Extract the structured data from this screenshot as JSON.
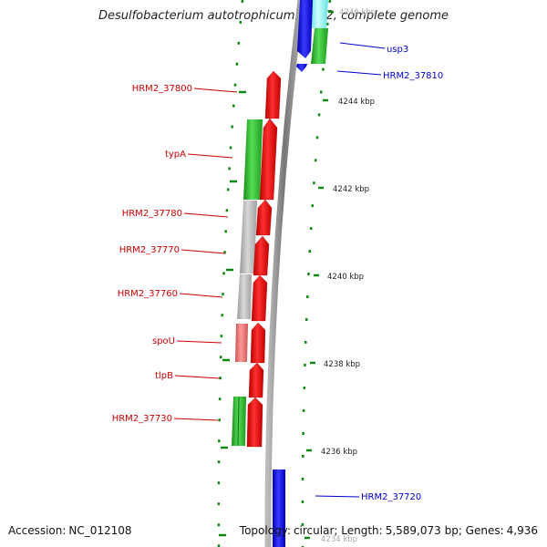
{
  "title": "Desulfobacterium autotrophicum HRM2, complete genome",
  "footer": {
    "accession_label": "Accession:",
    "accession": "NC_012108",
    "topology_label": "Topology:",
    "topology": "circular",
    "length_label": "Length:",
    "length": "5,589,073 bp",
    "genes_label": "Genes:",
    "genes": "4,936"
  },
  "colors": {
    "red": "#ff0000",
    "green": "#33cc33",
    "blue": "#0000ff",
    "gray": "#c0c0c0",
    "salmon": "#ee7777",
    "cyan": "#00ffff",
    "label_red": "#cc0000",
    "label_blue": "#0000cc",
    "tick_green": "#118811"
  },
  "scale_labels": [
    "4246 kbp",
    "4244 kbp",
    "4242 kbp",
    "4240 kbp",
    "4238 kbp",
    "4236 kbp",
    "4234 kbp"
  ],
  "gene_labels_right": [
    "usp3",
    "HRM2_37810",
    "HRM2_37720"
  ],
  "gene_labels_left": [
    "HRM2_37800",
    "typA",
    "HRM2_37780",
    "HRM2_37770",
    "HRM2_37760",
    "spoU",
    "tlpB",
    "HRM2_37730"
  ]
}
